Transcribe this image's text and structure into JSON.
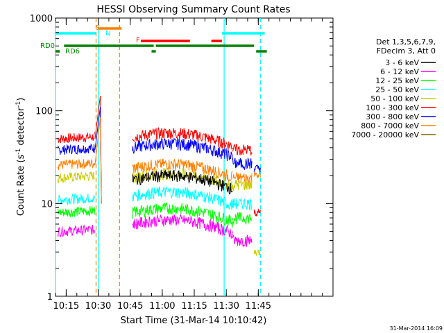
{
  "chart_data": {
    "type": "line",
    "title": "HESSI Observing Summary Count Rates",
    "xlabel": "Start Time (31-Mar-14 10:10:42)",
    "ylabel_main": "Count Rate (s",
    "ylabel_sup1": "-1",
    "ylabel_mid": " detector",
    "ylabel_sup2": "-1",
    "ylabel_end": ")",
    "yscale": "log",
    "ylim": [
      1,
      1000
    ],
    "xlim_min": [
      10,
      140
    ],
    "yticks": [
      {
        "value": 1,
        "label": "1"
      },
      {
        "value": 10,
        "label": "10"
      },
      {
        "value": 100,
        "label": "100"
      },
      {
        "value": 1000,
        "label": "1000"
      }
    ],
    "xticks": [
      {
        "value": 15,
        "label": "10:15"
      },
      {
        "value": 30,
        "label": "10:30"
      },
      {
        "value": 45,
        "label": "10:45"
      },
      {
        "value": 60,
        "label": "11:00"
      },
      {
        "value": 75,
        "label": "11:15"
      },
      {
        "value": 90,
        "label": "11:30"
      },
      {
        "value": 105,
        "label": "11:45"
      }
    ],
    "legend_header": [
      "Det 1,3,5,6,7,9,",
      "FDecim 3, Att 0"
    ],
    "legend_position": "right",
    "series": [
      {
        "name": "3 - 6 keV",
        "color": "#000000",
        "key": "s36"
      },
      {
        "name": "6 - 12 keV",
        "color": "#ff00ff",
        "key": "s612"
      },
      {
        "name": "12 - 25 keV",
        "color": "#00ff00",
        "key": "s1225"
      },
      {
        "name": "25 - 50 keV",
        "color": "#00ffff",
        "key": "s2550"
      },
      {
        "name": "50 - 100 keV",
        "color": "#cccc00",
        "key": "s50100"
      },
      {
        "name": "100 - 300 keV",
        "color": "#ff0000",
        "key": "s100300"
      },
      {
        "name": "300 - 800 keV",
        "color": "#0000ff",
        "key": "s300800"
      },
      {
        "name": "800 - 7000 keV",
        "color": "#ff8000",
        "key": "s8007000"
      },
      {
        "name": "7000 - 20000 keV",
        "color": "#806000",
        "key": "s700020000"
      }
    ],
    "profiles": {
      "quiet_before": {
        "x": [
          11,
          28.5
        ],
        "values": {
          "s100300": 50,
          "s300800": 38,
          "s8007000": 26,
          "s50100": 19,
          "s2550": 11,
          "s1225": 8,
          "s612": 5
        }
      },
      "spike": {
        "x": 31,
        "values": {
          "s100300": 145,
          "s300800": 110,
          "s8007000": 85
        }
      },
      "quiet_after": {
        "x": [
          46,
          93
        ],
        "values": {
          "s100300": 52,
          "s300800": 40,
          "s8007000": 24,
          "s50100": 19,
          "s2550": 12,
          "s1225": 8,
          "s612": 6,
          "s36": 18
        }
      },
      "late": {
        "x": [
          93,
          102
        ],
        "values": {
          "s100300": 38,
          "s300800": 27,
          "s8007000": 19,
          "s50100": 16,
          "s2550": 10,
          "s1225": 7,
          "s612": 4
        }
      },
      "end": {
        "x": [
          103,
          106
        ],
        "values": {
          "s300800": 24,
          "s8007000": 20,
          "s100300": 8,
          "s50100": 3
        }
      }
    },
    "flags": [
      {
        "label": "S",
        "color": "#ff8000"
      },
      {
        "label": "N",
        "color": "#00ffff"
      },
      {
        "label": "F",
        "color": "#ff0000"
      },
      {
        "label": "RD0",
        "color": "#008000"
      },
      {
        "label": "RD6",
        "color": "#008000"
      }
    ],
    "flag_bars": [
      {
        "color": "#00ffff",
        "row": "top",
        "x": [
          10,
          29
        ]
      },
      {
        "color": "#00ffff",
        "row": "top",
        "x": [
          88,
          108
        ]
      },
      {
        "color": "#ff8000",
        "row": "top2",
        "x": [
          30,
          41
        ]
      },
      {
        "color": "#ff0000",
        "row": "mid",
        "x": [
          50,
          73
        ]
      },
      {
        "color": "#ff0000",
        "row": "mid",
        "x": [
          83,
          88
        ]
      },
      {
        "color": "#008000",
        "row": "rd0",
        "x": [
          14,
          56
        ]
      },
      {
        "color": "#008000",
        "row": "rd0",
        "x": [
          57,
          103
        ]
      },
      {
        "color": "#008000",
        "row": "rd6",
        "x": [
          10,
          12
        ]
      },
      {
        "color": "#008000",
        "row": "rd6",
        "x": [
          55,
          57
        ]
      },
      {
        "color": "#008000",
        "row": "rd6",
        "x": [
          104,
          109
        ]
      }
    ],
    "vlines": [
      {
        "x": 10,
        "color": "#00ffff",
        "dash": false
      },
      {
        "x": 29,
        "color": "#ff8000",
        "dash": true
      },
      {
        "x": 30,
        "color": "#00ffff",
        "dash": false
      },
      {
        "x": 40,
        "color": "#ff8000",
        "dash": true
      },
      {
        "x": 89,
        "color": "#00ffff",
        "dash": false
      },
      {
        "x": 106,
        "color": "#00ffff",
        "dash": true
      }
    ],
    "footer_date": "31-Mar-2014 16:09"
  }
}
